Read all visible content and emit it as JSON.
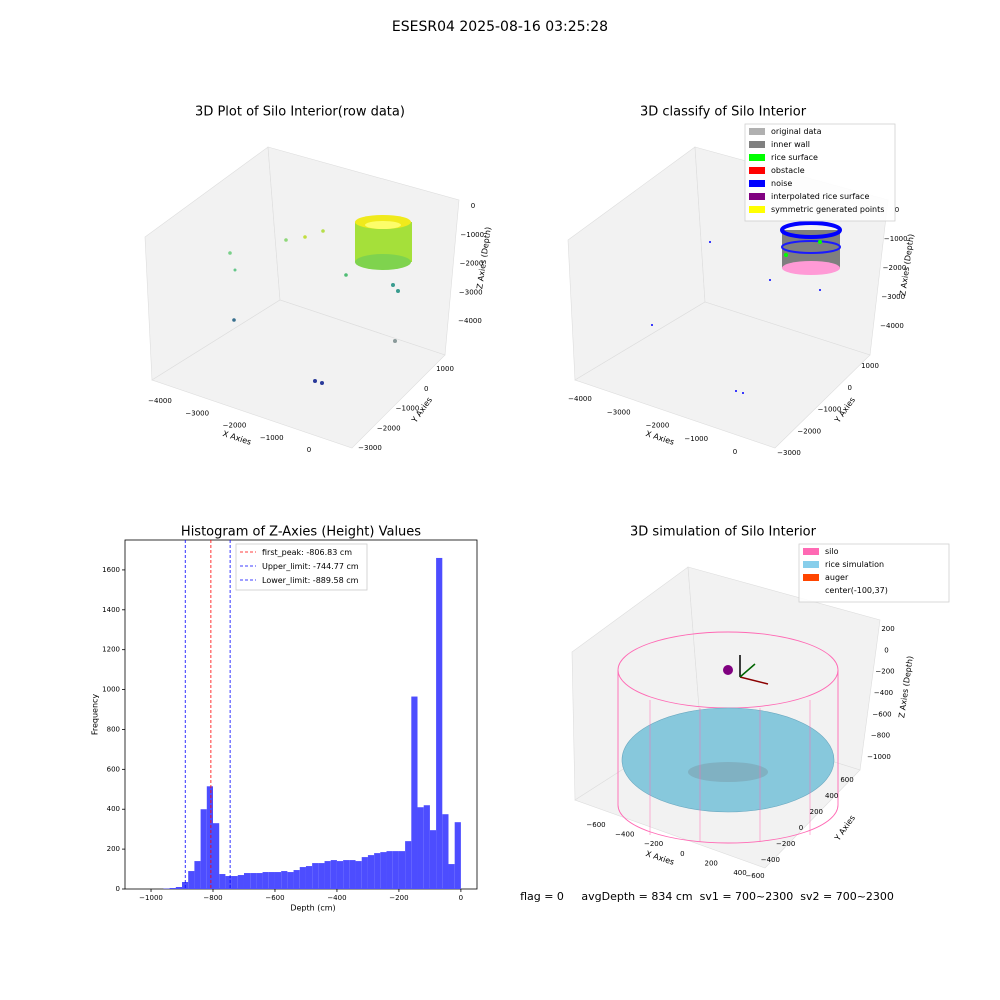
{
  "title": "ESESR04 2025-08-16 03:25:28",
  "footer": "flag = 0     avgDepth = 834 cm  sv1 = 700~2300  sv2 = 700~2300",
  "chart_data": [
    {
      "type": "scatter3d",
      "title": "3D Plot of Silo Interior(row data)",
      "xlabel": "X Axies",
      "ylabel": "Y Axies",
      "zlabel": "Z Axies (Depth)",
      "xticks": [
        {
          "value": -4000,
          "label": "−4000"
        },
        {
          "value": -3000,
          "label": "−3000"
        },
        {
          "value": -2000,
          "label": "−2000"
        },
        {
          "value": -1000,
          "label": "−1000"
        },
        0
      ],
      "yticks": [
        1000,
        0,
        {
          "value": -1000,
          "label": "−1000"
        },
        {
          "value": -2000,
          "label": "−2000"
        },
        {
          "value": -3000,
          "label": "−3000"
        }
      ],
      "zticks": [
        0,
        {
          "value": -1000,
          "label": "−1000"
        },
        {
          "value": -2000,
          "label": "−2000"
        },
        {
          "value": -3000,
          "label": "−3000"
        },
        {
          "value": -4000,
          "label": "−4000"
        }
      ]
    },
    {
      "type": "scatter3d",
      "title": "3D classify of Silo Interior",
      "xlabel": "X Axies",
      "ylabel": "Y Axies",
      "zlabel": "Z Axies (Depth)",
      "xticks": [
        {
          "value": -4000,
          "label": "−4000"
        },
        {
          "value": -3000,
          "label": "−3000"
        },
        {
          "value": -2000,
          "label": "−2000"
        },
        {
          "value": -1000,
          "label": "−1000"
        },
        0
      ],
      "yticks": [
        1000,
        0,
        {
          "value": -1000,
          "label": "−1000"
        },
        {
          "value": -2000,
          "label": "−2000"
        },
        {
          "value": -3000,
          "label": "−3000"
        }
      ],
      "zticks": [
        0,
        {
          "value": -1000,
          "label": "−1000"
        },
        {
          "value": -2000,
          "label": "−2000"
        },
        {
          "value": -3000,
          "label": "−3000"
        },
        {
          "value": -4000,
          "label": "−4000"
        }
      ],
      "legend": [
        {
          "name": "original data",
          "color": "#b0b0b0"
        },
        {
          "name": "inner wall",
          "color": "#808080"
        },
        {
          "name": "rice surface",
          "color": "#00ff00"
        },
        {
          "name": "obstacle",
          "color": "#ff0000"
        },
        {
          "name": "noise",
          "color": "#0000ff"
        },
        {
          "name": "interpolated rice surface",
          "color": "#800080"
        },
        {
          "name": "symmetric generated points",
          "color": "#ffff00"
        }
      ]
    },
    {
      "type": "histogram",
      "title": "Histogram of Z-Axies (Height) Values",
      "xlabel": "Depth (cm)",
      "ylabel": "Frequency",
      "color": "#4d4dff",
      "bins": [
        -1000,
        -980,
        -960,
        -940,
        -920,
        -900,
        -880,
        -860,
        -840,
        -820,
        -800,
        -780,
        -760,
        -740,
        -720,
        -700,
        -680,
        -660,
        -640,
        -620,
        -600,
        -580,
        -560,
        -540,
        -520,
        -500,
        -480,
        -460,
        -440,
        -420,
        -400,
        -380,
        -360,
        -340,
        -320,
        -300,
        -280,
        -260,
        -240,
        -220,
        -200,
        -180,
        -160,
        -140,
        -120,
        -100,
        -80,
        -60,
        -40,
        -20,
        0
      ],
      "values": [
        0,
        0,
        2,
        5,
        10,
        35,
        90,
        140,
        400,
        515,
        330,
        75,
        65,
        65,
        70,
        80,
        80,
        80,
        85,
        85,
        85,
        90,
        85,
        95,
        110,
        115,
        130,
        130,
        140,
        145,
        140,
        145,
        145,
        140,
        160,
        170,
        180,
        185,
        190,
        190,
        190,
        240,
        965,
        410,
        420,
        295,
        1660,
        375,
        125,
        335
      ],
      "xlim": [
        -1084,
        52
      ],
      "ylim": [
        0,
        1750
      ],
      "xticks": [
        {
          "value": -1000,
          "label": "−1000"
        },
        {
          "value": -800,
          "label": "−800"
        },
        {
          "value": -600,
          "label": "−600"
        },
        {
          "value": -400,
          "label": "−400"
        },
        {
          "value": -200,
          "label": "−200"
        },
        0
      ],
      "yticks": [
        0,
        200,
        400,
        600,
        800,
        1000,
        1200,
        1400,
        1600
      ],
      "vlines": [
        {
          "label": "first_peak: -806.83 cm",
          "value": -806.83,
          "color": "#ff0000"
        },
        {
          "label": "Upper_limit: -744.77 cm",
          "value": -744.77,
          "color": "#0000ff"
        },
        {
          "label": "Lower_limit: -889.58 cm",
          "value": -889.58,
          "color": "#0000ff"
        }
      ]
    },
    {
      "type": "surface3d",
      "title": "3D simulation of Silo Interior",
      "xlabel": "X Axies",
      "ylabel": "Y Axies",
      "zlabel": "Z Axies (Depth)",
      "xticks": [
        {
          "value": -600,
          "label": "−600"
        },
        {
          "value": -400,
          "label": "−400"
        },
        {
          "value": -200,
          "label": "−200"
        },
        0,
        200,
        400
      ],
      "yticks": [
        600,
        400,
        200,
        0,
        {
          "value": -200,
          "label": "−200"
        },
        {
          "value": -400,
          "label": "−400"
        },
        {
          "value": -600,
          "label": "−600"
        }
      ],
      "zticks": [
        200,
        0,
        {
          "value": -200,
          "label": "−200"
        },
        {
          "value": -400,
          "label": "−400"
        },
        {
          "value": -600,
          "label": "−600"
        },
        {
          "value": -800,
          "label": "−800"
        },
        {
          "value": -1000,
          "label": "−1000"
        }
      ],
      "legend": [
        {
          "name": "silo",
          "color": "#ff69b4"
        },
        {
          "name": "rice simulation",
          "color": "#87ceeb"
        },
        {
          "name": "auger",
          "color": "#ff4500"
        },
        {
          "name": "center(-100,37)"
        }
      ]
    }
  ]
}
